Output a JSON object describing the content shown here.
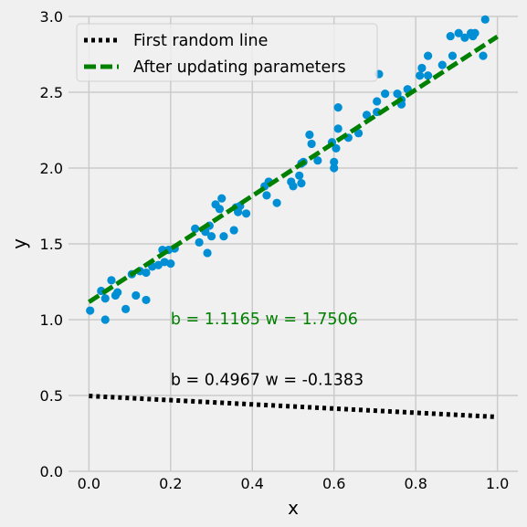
{
  "chart_data": {
    "type": "scatter",
    "title": "",
    "xlabel": "x",
    "ylabel": "y",
    "xlim": [
      -0.05,
      1.05
    ],
    "ylim": [
      0.0,
      3.0
    ],
    "xticks": [
      0.0,
      0.2,
      0.4,
      0.6,
      0.8,
      1.0
    ],
    "xtick_labels": [
      "0.0",
      "0.2",
      "0.4",
      "0.6",
      "0.8",
      "1.0"
    ],
    "yticks": [
      0.0,
      0.5,
      1.0,
      1.5,
      2.0,
      2.5,
      3.0
    ],
    "ytick_labels": [
      "0.0",
      "0.5",
      "1.0",
      "1.5",
      "2.0",
      "2.5",
      "3.0"
    ],
    "grid": true,
    "legend_position": "upper-left",
    "colors": {
      "points": "#008fd5",
      "first_line": "#000000",
      "updated_line": "#008000",
      "annotation_updated": "#008000",
      "annotation_first": "#000000",
      "background": "#f0f0f0",
      "grid": "#cbcbcb"
    },
    "points": [
      [
        0.003,
        1.06
      ],
      [
        0.03,
        1.19
      ],
      [
        0.04,
        1.0
      ],
      [
        0.04,
        1.14
      ],
      [
        0.055,
        1.26
      ],
      [
        0.065,
        1.16
      ],
      [
        0.07,
        1.18
      ],
      [
        0.09,
        1.07
      ],
      [
        0.105,
        1.3
      ],
      [
        0.115,
        1.16
      ],
      [
        0.125,
        1.32
      ],
      [
        0.14,
        1.13
      ],
      [
        0.14,
        1.31
      ],
      [
        0.155,
        1.35
      ],
      [
        0.17,
        1.36
      ],
      [
        0.18,
        1.46
      ],
      [
        0.185,
        1.38
      ],
      [
        0.195,
        1.46
      ],
      [
        0.2,
        1.37
      ],
      [
        0.21,
        1.47
      ],
      [
        0.26,
        1.6
      ],
      [
        0.27,
        1.51
      ],
      [
        0.285,
        1.58
      ],
      [
        0.29,
        1.44
      ],
      [
        0.295,
        1.62
      ],
      [
        0.3,
        1.55
      ],
      [
        0.31,
        1.76
      ],
      [
        0.32,
        1.73
      ],
      [
        0.325,
        1.8
      ],
      [
        0.33,
        1.55
      ],
      [
        0.355,
        1.59
      ],
      [
        0.36,
        1.74
      ],
      [
        0.365,
        1.71
      ],
      [
        0.37,
        1.75
      ],
      [
        0.385,
        1.7
      ],
      [
        0.43,
        1.88
      ],
      [
        0.435,
        1.82
      ],
      [
        0.44,
        1.91
      ],
      [
        0.46,
        1.77
      ],
      [
        0.495,
        1.91
      ],
      [
        0.5,
        1.88
      ],
      [
        0.515,
        1.95
      ],
      [
        0.52,
        1.9
      ],
      [
        0.52,
        2.03
      ],
      [
        0.525,
        2.04
      ],
      [
        0.54,
        2.22
      ],
      [
        0.545,
        2.16
      ],
      [
        0.56,
        2.05
      ],
      [
        0.595,
        2.17
      ],
      [
        0.6,
        2.04
      ],
      [
        0.6,
        2.0
      ],
      [
        0.605,
        2.13
      ],
      [
        0.61,
        2.26
      ],
      [
        0.61,
        2.4
      ],
      [
        0.635,
        2.2
      ],
      [
        0.66,
        2.23
      ],
      [
        0.68,
        2.35
      ],
      [
        0.705,
        2.44
      ],
      [
        0.705,
        2.37
      ],
      [
        0.71,
        2.62
      ],
      [
        0.725,
        2.49
      ],
      [
        0.755,
        2.49
      ],
      [
        0.765,
        2.42
      ],
      [
        0.765,
        2.45
      ],
      [
        0.78,
        2.52
      ],
      [
        0.81,
        2.61
      ],
      [
        0.815,
        2.66
      ],
      [
        0.83,
        2.74
      ],
      [
        0.83,
        2.61
      ],
      [
        0.865,
        2.68
      ],
      [
        0.885,
        2.87
      ],
      [
        0.89,
        2.74
      ],
      [
        0.905,
        2.89
      ],
      [
        0.92,
        2.86
      ],
      [
        0.935,
        2.89
      ],
      [
        0.94,
        2.87
      ],
      [
        0.945,
        2.89
      ],
      [
        0.965,
        2.74
      ],
      [
        0.97,
        2.98
      ]
    ],
    "lines": [
      {
        "name": "First random line",
        "b": 0.4967,
        "w": -0.1383,
        "x_range": [
          0.0,
          1.0
        ]
      },
      {
        "name": "After updating parameters",
        "b": 1.1165,
        "w": 1.7506,
        "x_range": [
          0.0,
          1.0
        ]
      }
    ],
    "annotations": [
      {
        "text": "b = 1.1165 w = 1.7506",
        "x": 0.2,
        "y": 0.97,
        "color_key": "annotation_updated"
      },
      {
        "text": "b = 0.4967 w = -0.1383",
        "x": 0.2,
        "y": 0.57,
        "color_key": "annotation_first"
      }
    ]
  }
}
